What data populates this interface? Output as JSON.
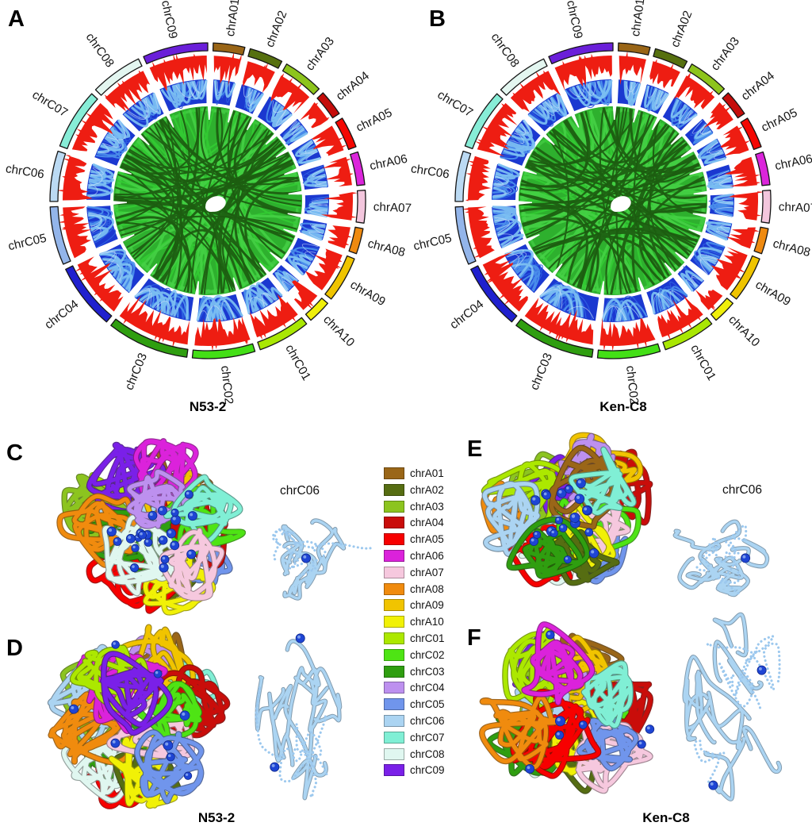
{
  "panels": {
    "A": {
      "label": "A",
      "title": "N53-2"
    },
    "B": {
      "label": "B",
      "title": "Ken-C8"
    },
    "C": {
      "label": "C",
      "inset_label": "chrC06"
    },
    "D": {
      "label": "D",
      "title": "N53-2"
    },
    "E": {
      "label": "E",
      "inset_label": "chrC06"
    },
    "F": {
      "label": "F",
      "title": "Ken-C8"
    }
  },
  "chromosomes": [
    {
      "name": "chrA01",
      "arc_size_rel": 23.3,
      "ring_color": "#996516",
      "model_color": "#9A6618"
    },
    {
      "name": "chrA02",
      "arc_size_rel": 24.8,
      "ring_color": "#56700F",
      "model_color": "#566D12"
    },
    {
      "name": "chrA03",
      "arc_size_rel": 29.8,
      "ring_color": "#8DC41C",
      "model_color": "#8CC41F"
    },
    {
      "name": "chrA04",
      "arc_size_rel": 19.2,
      "ring_color": "#C50D0B",
      "model_color": "#C90D0A"
    },
    {
      "name": "chrA05",
      "arc_size_rel": 23.1,
      "ring_color": "#F40702",
      "model_color": "#F70000"
    },
    {
      "name": "chrA06",
      "arc_size_rel": 24.4,
      "ring_color": "#DB25DB",
      "model_color": "#DB22DB"
    },
    {
      "name": "chrA07",
      "arc_size_rel": 24.0,
      "ring_color": "#F3C6DD",
      "model_color": "#F6C8DE"
    },
    {
      "name": "chrA08",
      "arc_size_rel": 18.9,
      "ring_color": "#EF8A10",
      "model_color": "#F08B0E"
    },
    {
      "name": "chrA09",
      "arc_size_rel": 33.9,
      "ring_color": "#EFC400",
      "model_color": "#F1C400"
    },
    {
      "name": "chrA10",
      "arc_size_rel": 17.4,
      "ring_color": "#EFEF0A",
      "model_color": "#F1F106"
    },
    {
      "name": "chrC01",
      "arc_size_rel": 38.8,
      "ring_color": "#A9E703",
      "model_color": "#ACE800"
    },
    {
      "name": "chrC02",
      "arc_size_rel": 46.2,
      "ring_color": "#43DF16",
      "model_color": "#4EE414"
    },
    {
      "name": "chrC03",
      "arc_size_rel": 60.6,
      "ring_color": "#2F9E10",
      "model_color": "#2F9E10"
    },
    {
      "name": "chrC04",
      "arc_size_rel": 48.9,
      "ring_color": "#2020CE",
      "model_color": "#BD90EF"
    },
    {
      "name": "chrC05",
      "arc_size_rel": 43.0,
      "ring_color": "#93B5EA",
      "model_color": "#7095EC"
    },
    {
      "name": "chrC06",
      "arc_size_rel": 37.2,
      "ring_color": "#BBDAF3",
      "model_color": "#ABD4F2"
    },
    {
      "name": "chrC07",
      "arc_size_rel": 44.8,
      "ring_color": "#87EDD7",
      "model_color": "#80EFD5"
    },
    {
      "name": "chrC08",
      "arc_size_rel": 38.6,
      "ring_color": "#E3F6F0",
      "model_color": "#E0F7F0"
    },
    {
      "name": "chrC09",
      "arc_size_rel": 48.2,
      "ring_color": "#6A1FD9",
      "model_color": "#7A20E8"
    }
  ],
  "legend": {
    "entries": [
      {
        "label": "chrA01",
        "color": "#9A6618"
      },
      {
        "label": "chrA02",
        "color": "#566D12"
      },
      {
        "label": "chrA03",
        "color": "#8CC41F"
      },
      {
        "label": "chrA04",
        "color": "#C90D0A"
      },
      {
        "label": "chrA05",
        "color": "#F70000"
      },
      {
        "label": "chrA06",
        "color": "#DB22DB"
      },
      {
        "label": "chrA07",
        "color": "#F6C8DE"
      },
      {
        "label": "chrA08",
        "color": "#F08B0E"
      },
      {
        "label": "chrA09",
        "color": "#F1C400"
      },
      {
        "label": "chrA10",
        "color": "#F1F106"
      },
      {
        "label": "chrC01",
        "color": "#ACE800"
      },
      {
        "label": "chrC02",
        "color": "#4EE414"
      },
      {
        "label": "chrC03",
        "color": "#2F9E10"
      },
      {
        "label": "chrC04",
        "color": "#BD90EF"
      },
      {
        "label": "chrC05",
        "color": "#7095EC"
      },
      {
        "label": "chrC06",
        "color": "#ABD4F2"
      },
      {
        "label": "chrC07",
        "color": "#80EFD5"
      },
      {
        "label": "chrC08",
        "color": "#E0F7F0"
      },
      {
        "label": "chrC09",
        "color": "#7A20E8"
      }
    ]
  },
  "circos_style": {
    "histogram_color": "#EE1D12",
    "inner_links_dark_blue": "#1B38D0",
    "inner_links_light_blue": "#4E94EC",
    "center_links_green": "#2EB02E",
    "center_links_dark_green": "#1E5E12",
    "centromere_sphere_color": "#1E45D4"
  },
  "chart_data": {
    "type": "other",
    "description_visible": "Two Circos plots (N53-2, Ken-C8) with 19 chromosome ideograms, a red histogram track, blue intra-chromosomal link track and green inter-chromosomal links; four 3D chromatin models with extracted chrC06 structures.",
    "categories": [
      "chrA01",
      "chrA02",
      "chrA03",
      "chrA04",
      "chrA05",
      "chrA06",
      "chrA07",
      "chrA08",
      "chrA09",
      "chrA10",
      "chrC01",
      "chrC02",
      "chrC03",
      "chrC04",
      "chrC05",
      "chrC06",
      "chrC07",
      "chrC08",
      "chrC09"
    ]
  }
}
